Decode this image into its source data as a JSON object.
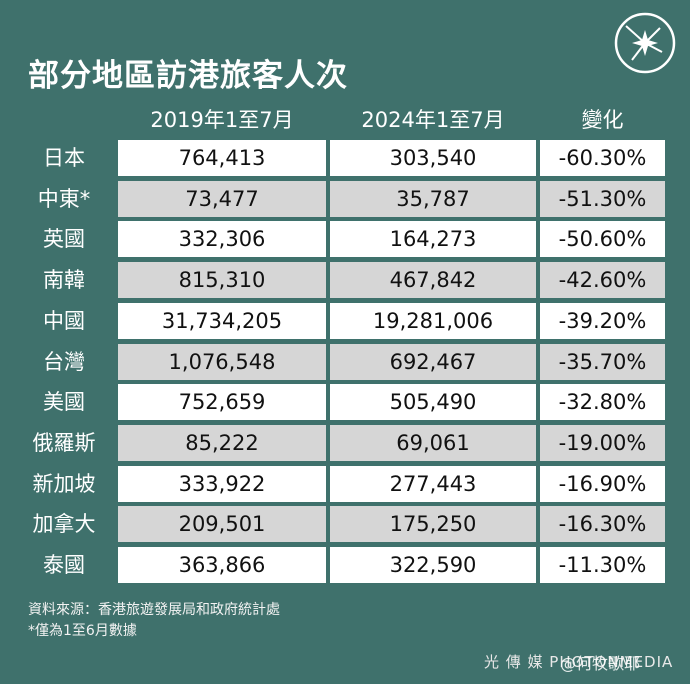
{
  "title": "部分地區訪港旅客人次",
  "chart_data": {
    "type": "table",
    "columns": [
      "2019年1至7月",
      "2024年1至7月",
      "變化"
    ],
    "rows": [
      {
        "label": "日本",
        "v2019": "764,413",
        "v2024": "303,540",
        "change": "-60.30%"
      },
      {
        "label": "中東*",
        "v2019": "73,477",
        "v2024": "35,787",
        "change": "-51.30%"
      },
      {
        "label": "英國",
        "v2019": "332,306",
        "v2024": "164,273",
        "change": "-50.60%"
      },
      {
        "label": "南韓",
        "v2019": "815,310",
        "v2024": "467,842",
        "change": "-42.60%"
      },
      {
        "label": "中國",
        "v2019": "31,734,205",
        "v2024": "19,281,006",
        "change": "-39.20%"
      },
      {
        "label": "台灣",
        "v2019": "1,076,548",
        "v2024": "692,467",
        "change": "-35.70%"
      },
      {
        "label": "美國",
        "v2019": "752,659",
        "v2024": "505,490",
        "change": "-32.80%"
      },
      {
        "label": "俄羅斯",
        "v2019": "85,222",
        "v2024": "69,061",
        "change": "-19.00%"
      },
      {
        "label": "新加坡",
        "v2019": "333,922",
        "v2024": "277,443",
        "change": "-16.90%"
      },
      {
        "label": "加拿大",
        "v2019": "209,501",
        "v2024": "175,250",
        "change": "-16.30%"
      },
      {
        "label": "泰國",
        "v2019": "363,866",
        "v2024": "322,590",
        "change": "-11.30%"
      }
    ]
  },
  "footnotes": [
    "資料來源：香港旅遊發展局和政府統計處",
    "*僅為1至6月數據"
  ],
  "brand": "光 傳 媒 PHOTONMEDIA",
  "watermark": "@何牧歌耶",
  "colors": {
    "background": "#3f716c",
    "row_white": "#ffffff",
    "row_grey": "#d6d6d6"
  }
}
